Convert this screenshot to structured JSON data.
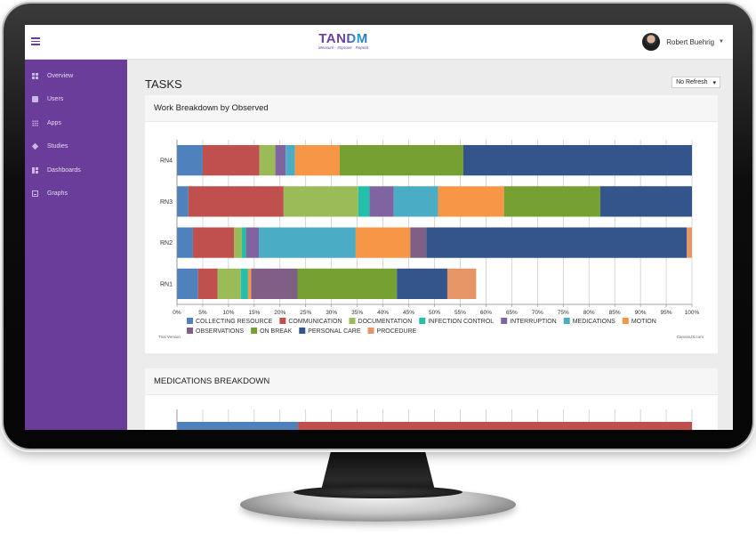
{
  "header": {
    "logo_text": "TANDM",
    "logo_tagline": "Measure · Improve · Repeat",
    "user_name": "Robert Buehrig"
  },
  "sidebar": {
    "items": [
      {
        "label": "Overview",
        "icon": "overview-icon"
      },
      {
        "label": "Users",
        "icon": "user-icon"
      },
      {
        "label": "Apps",
        "icon": "apps-icon"
      },
      {
        "label": "Studies",
        "icon": "layers-icon"
      },
      {
        "label": "Dashboards",
        "icon": "dashboard-icon"
      },
      {
        "label": "Graphs",
        "icon": "graph-icon"
      }
    ]
  },
  "main": {
    "title": "TASKS",
    "refresh_label": "No Refresh",
    "card1_title": "Work Breakdown by Observed",
    "card2_title": "MEDICATIONS BREAKDOWN",
    "trial_text": "Trial Version",
    "credit_text": "CanvasJS.com"
  },
  "colors": {
    "COLLECTING RESOURCE": "#4f81bc",
    "COMMUNICATION": "#c0504e",
    "DOCUMENTATION": "#9bbb58",
    "INFECTION CONTROL": "#23bfaa",
    "INTERRUPTION": "#8064a1",
    "MEDICATIONS": "#4aacc5",
    "MOTION": "#f79647",
    "OBSERVATIONS": "#7f6084",
    "ON BREAK": "#77a033",
    "PERSONAL CARE": "#33558b",
    "PROCEDURE": "#e59566"
  },
  "chart_data": [
    {
      "type": "bar",
      "stacked": "100%",
      "orientation": "horizontal",
      "categories": [
        "RN4",
        "RN3",
        "RN2",
        "RN1"
      ],
      "xlim": [
        0,
        100
      ],
      "x_ticks": [
        "0%",
        "5%",
        "10%",
        "15%",
        "20%",
        "25%",
        "30%",
        "35%",
        "40%",
        "45%",
        "50%",
        "55%",
        "60%",
        "65%",
        "70%",
        "75%",
        "80%",
        "85%",
        "90%",
        "95%",
        "100%"
      ],
      "legend_position": "bottom",
      "series": [
        {
          "name": "COLLECTING RESOURCE",
          "values": [
            5.0,
            2.2,
            3.1,
            4.1
          ]
        },
        {
          "name": "COMMUNICATION",
          "values": [
            11.0,
            18.5,
            8.0,
            3.8
          ]
        },
        {
          "name": "DOCUMENTATION",
          "values": [
            3.1,
            14.5,
            1.5,
            4.5
          ]
        },
        {
          "name": "INFECTION CONTROL",
          "values": [
            0,
            2.2,
            0.8,
            1.4
          ]
        },
        {
          "name": "INTERRUPTION",
          "values": [
            2.0,
            4.7,
            2.5,
            0
          ]
        },
        {
          "name": "MEDICATIONS",
          "values": [
            1.8,
            8.6,
            18.8,
            0
          ]
        },
        {
          "name": "MOTION",
          "values": [
            8.7,
            12.8,
            10.6,
            0.6
          ]
        },
        {
          "name": "OBSERVATIONS",
          "values": [
            0,
            0,
            3.1,
            9.0
          ]
        },
        {
          "name": "ON BREAK",
          "values": [
            24.0,
            18.7,
            0,
            19.3
          ]
        },
        {
          "name": "PERSONAL CARE",
          "values": [
            44.4,
            17.8,
            50.6,
            9.8
          ]
        },
        {
          "name": "PROCEDURE",
          "values": [
            0,
            0,
            1.0,
            5.6
          ]
        }
      ]
    },
    {
      "type": "bar",
      "stacked": "100%",
      "orientation": "horizontal",
      "categories": [
        ""
      ],
      "xlim": [
        0,
        100
      ],
      "series": [
        {
          "name": "",
          "color": "#4f81bc",
          "values": [
            23.5
          ]
        },
        {
          "name": "",
          "color": "#c0504e",
          "values": [
            76.5
          ]
        }
      ]
    }
  ]
}
